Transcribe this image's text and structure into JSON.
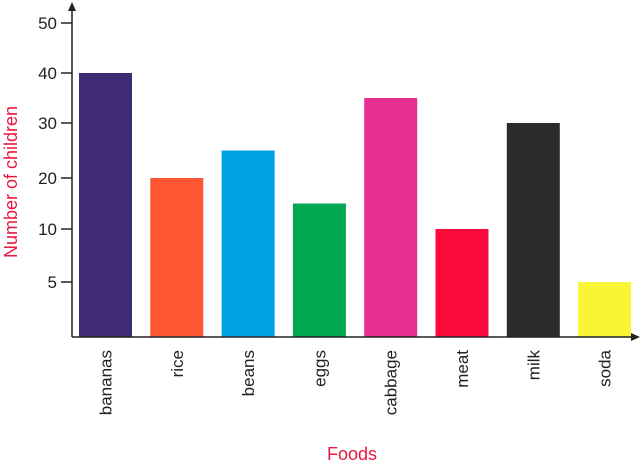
{
  "chart_data": {
    "type": "bar",
    "title": "",
    "xlabel": "Foods",
    "ylabel": "Number of children",
    "categories": [
      "bananas",
      "rice",
      "beans",
      "eggs",
      "cabbage",
      "meat",
      "milk",
      "soda"
    ],
    "values": [
      40,
      20,
      25,
      15,
      35,
      10,
      30,
      5
    ],
    "colors": [
      "#3f2b73",
      "#fc5632",
      "#00a2e5",
      "#00a650",
      "#e72f93",
      "#fa0a3a",
      "#2d2a2b",
      "#faf437"
    ],
    "yticks": [
      5,
      10,
      20,
      30,
      40,
      50
    ],
    "ylim": [
      0,
      50
    ],
    "label_color": "#e8173f",
    "grid": false,
    "legend": "none"
  }
}
